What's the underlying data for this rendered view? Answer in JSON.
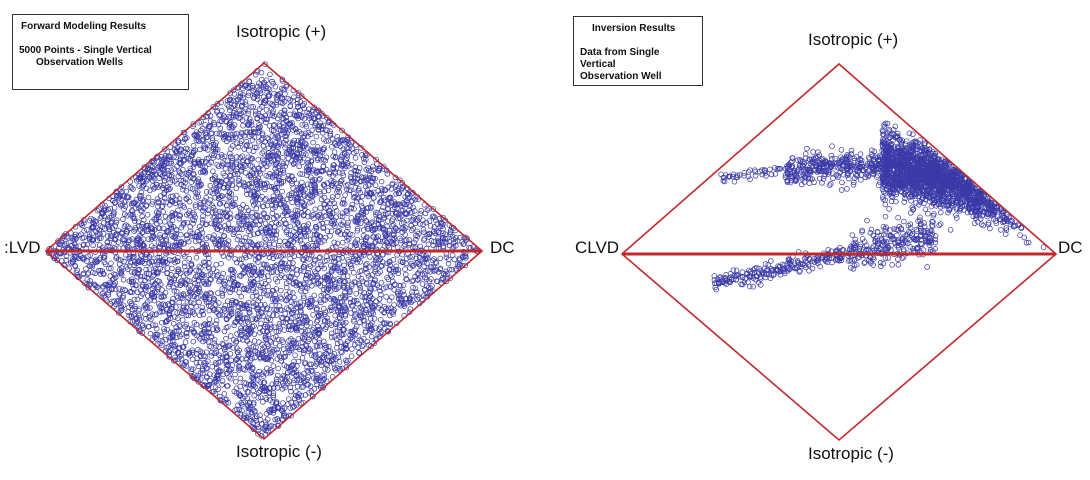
{
  "chart_data": [
    {
      "type": "scatter",
      "name": "forward-modeling",
      "legend": {
        "title": "Forward Modeling Results",
        "line1": "5000 Points - Single Vertical",
        "line2": "Observation Wells"
      },
      "labels": {
        "top": "Isotropic (+)",
        "bottom": "Isotropic (-)",
        "left": ":LVD",
        "right": "DC"
      },
      "point_count": 5000,
      "distribution": "uniform within diamond",
      "x_range": [
        -1,
        1
      ],
      "y_range": [
        -1,
        1
      ],
      "colors": {
        "points": "#3a3aa8",
        "frame": "#c0282b"
      }
    },
    {
      "type": "scatter",
      "name": "inversion",
      "legend": {
        "title": "Inversion Results",
        "line1": "Data from Single Vertical",
        "line2": "Observation Well"
      },
      "labels": {
        "top": "Isotropic (+)",
        "bottom": "Isotropic (-)",
        "left": "CLVD",
        "right": "DC"
      },
      "bands": [
        {
          "x_start": 0.2,
          "x_end": 1.0,
          "y_center_start": 0.48,
          "y_center_end": 0.26,
          "thickness": 0.18,
          "count": 1700
        },
        {
          "x_start": -0.25,
          "x_end": 0.2,
          "y_center_start": 0.44,
          "y_center_end": 0.48,
          "thickness": 0.09,
          "count": 320
        },
        {
          "x_start": -0.55,
          "x_end": -0.25,
          "y_center_start": 0.4,
          "y_center_end": 0.44,
          "thickness": 0.03,
          "count": 40
        },
        {
          "x_start": -0.58,
          "x_end": 0.05,
          "y_center_start": -0.16,
          "y_center_end": 0.01,
          "thickness": 0.05,
          "count": 220
        },
        {
          "x_start": 0.05,
          "x_end": 0.45,
          "y_center_start": 0.01,
          "y_center_end": 0.1,
          "thickness": 0.12,
          "count": 240
        }
      ],
      "x_range": [
        -1,
        1
      ],
      "y_range": [
        -1,
        1
      ],
      "colors": {
        "points": "#3a3aa8",
        "frame": "#c0282b"
      }
    }
  ]
}
